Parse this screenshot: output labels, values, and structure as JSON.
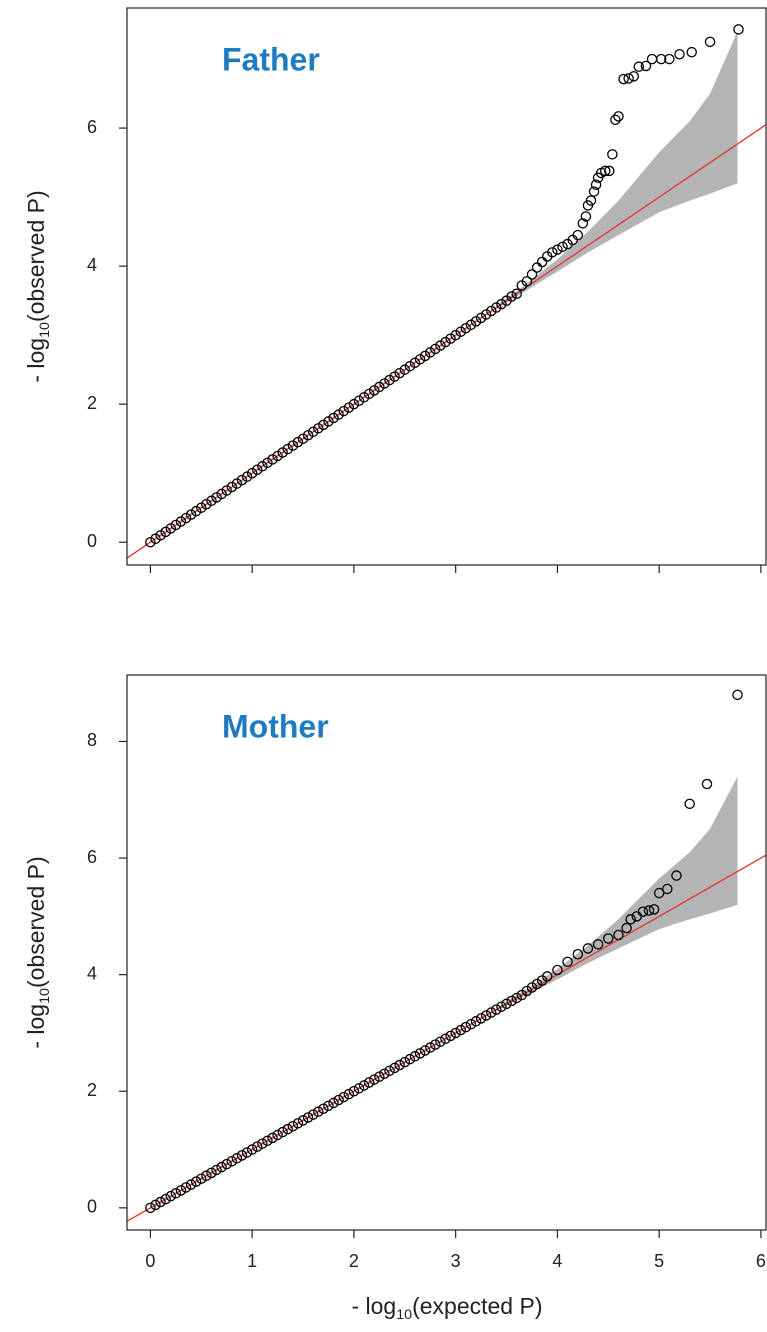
{
  "chart_data": [
    {
      "type": "scatter",
      "title": "Father",
      "title_color": "#1f7bc1",
      "ylabel": {
        "prefix": "- log",
        "sub": "10",
        "suffix": "(observed P)"
      },
      "xlim": [
        -0.23,
        6.05
      ],
      "ylim": [
        -0.33,
        7.74
      ],
      "xticks": [
        0,
        1,
        2,
        3,
        4,
        5,
        6
      ],
      "yticks": [
        0,
        2,
        4,
        6
      ],
      "show_xtick_labels": false,
      "reference": {
        "slope": 1,
        "intercept": 0,
        "color": "#e8312f"
      },
      "band": {
        "color": "#b4b4b4",
        "x": [
          3.4,
          3.7,
          4.0,
          4.3,
          4.6,
          5.0,
          5.3,
          5.5,
          5.77
        ],
        "upper": [
          3.42,
          3.75,
          4.1,
          4.5,
          4.95,
          5.65,
          6.1,
          6.5,
          7.4
        ],
        "lower": [
          3.38,
          3.65,
          3.92,
          4.2,
          4.45,
          4.78,
          4.95,
          5.05,
          5.2
        ]
      },
      "series": [
        {
          "color": "#000000",
          "x": [
            0,
            0.05,
            0.1,
            0.15,
            0.2,
            0.25,
            0.3,
            0.35,
            0.4,
            0.45,
            0.5,
            0.55,
            0.6,
            0.65,
            0.7,
            0.75,
            0.8,
            0.85,
            0.9,
            0.95,
            1,
            1.05,
            1.1,
            1.15,
            1.2,
            1.25,
            1.3,
            1.35,
            1.4,
            1.45,
            1.5,
            1.55,
            1.6,
            1.65,
            1.7,
            1.75,
            1.8,
            1.85,
            1.9,
            1.95,
            2,
            2.05,
            2.1,
            2.15,
            2.2,
            2.25,
            2.3,
            2.35,
            2.4,
            2.45,
            2.5,
            2.55,
            2.6,
            2.65,
            2.7,
            2.75,
            2.8,
            2.85,
            2.9,
            2.95,
            3,
            3.05,
            3.1,
            3.15,
            3.2,
            3.25,
            3.3,
            3.35,
            3.4,
            3.45,
            3.5,
            3.55,
            3.6,
            3.65,
            3.7,
            3.75,
            3.8,
            3.85,
            3.9,
            3.95,
            4.0,
            4.05,
            4.1,
            4.15,
            4.2,
            4.25,
            4.28,
            4.3,
            4.33,
            4.36,
            4.38,
            4.4,
            4.43,
            4.47,
            4.51,
            4.54,
            4.57,
            4.6,
            4.65,
            4.7,
            4.75,
            4.8,
            4.87,
            4.93,
            5.02,
            5.1,
            5.2,
            5.32,
            5.5,
            5.78
          ],
          "values": [
            0,
            0.05,
            0.1,
            0.15,
            0.2,
            0.25,
            0.3,
            0.35,
            0.4,
            0.45,
            0.5,
            0.55,
            0.6,
            0.65,
            0.7,
            0.75,
            0.8,
            0.85,
            0.9,
            0.95,
            1,
            1.05,
            1.1,
            1.15,
            1.2,
            1.25,
            1.3,
            1.35,
            1.4,
            1.45,
            1.5,
            1.55,
            1.6,
            1.65,
            1.7,
            1.75,
            1.8,
            1.85,
            1.9,
            1.95,
            2,
            2.05,
            2.1,
            2.15,
            2.2,
            2.25,
            2.3,
            2.35,
            2.4,
            2.45,
            2.5,
            2.55,
            2.6,
            2.65,
            2.7,
            2.75,
            2.8,
            2.85,
            2.9,
            2.95,
            3,
            3.05,
            3.1,
            3.15,
            3.2,
            3.25,
            3.3,
            3.35,
            3.4,
            3.45,
            3.5,
            3.56,
            3.6,
            3.72,
            3.78,
            3.88,
            3.98,
            4.06,
            4.14,
            4.2,
            4.24,
            4.28,
            4.32,
            4.38,
            4.45,
            4.62,
            4.72,
            4.88,
            4.95,
            5.08,
            5.18,
            5.28,
            5.35,
            5.38,
            5.38,
            5.62,
            6.12,
            6.17,
            6.71,
            6.72,
            6.75,
            6.89,
            6.9,
            7.0,
            7.0,
            7.0,
            7.07,
            7.1,
            7.25,
            7.43
          ]
        }
      ]
    },
    {
      "type": "scatter",
      "title": "Mother",
      "title_color": "#1f7bc1",
      "ylabel": {
        "prefix": "- log",
        "sub": "10",
        "suffix": "(observed P)"
      },
      "xlabel": {
        "prefix": "- log",
        "sub": "10",
        "suffix": "(expected P)"
      },
      "xlim": [
        -0.23,
        6.05
      ],
      "ylim": [
        -0.38,
        9.14
      ],
      "xticks": [
        0,
        1,
        2,
        3,
        4,
        5,
        6
      ],
      "yticks": [
        0,
        2,
        4,
        6,
        8
      ],
      "show_xtick_labels": true,
      "reference": {
        "slope": 1,
        "intercept": 0,
        "color": "#e8312f"
      },
      "band": {
        "color": "#b4b4b4",
        "x": [
          3.4,
          3.7,
          4.0,
          4.3,
          4.6,
          5.0,
          5.3,
          5.5,
          5.77
        ],
        "upper": [
          3.42,
          3.75,
          4.1,
          4.5,
          4.95,
          5.65,
          6.1,
          6.5,
          7.4
        ],
        "lower": [
          3.38,
          3.65,
          3.92,
          4.2,
          4.45,
          4.78,
          4.95,
          5.05,
          5.2
        ]
      },
      "series": [
        {
          "color": "#000000",
          "x": [
            0,
            0.05,
            0.1,
            0.15,
            0.2,
            0.25,
            0.3,
            0.35,
            0.4,
            0.45,
            0.5,
            0.55,
            0.6,
            0.65,
            0.7,
            0.75,
            0.8,
            0.85,
            0.9,
            0.95,
            1,
            1.05,
            1.1,
            1.15,
            1.2,
            1.25,
            1.3,
            1.35,
            1.4,
            1.45,
            1.5,
            1.55,
            1.6,
            1.65,
            1.7,
            1.75,
            1.8,
            1.85,
            1.9,
            1.95,
            2,
            2.05,
            2.1,
            2.15,
            2.2,
            2.25,
            2.3,
            2.35,
            2.4,
            2.45,
            2.5,
            2.55,
            2.6,
            2.65,
            2.7,
            2.75,
            2.8,
            2.85,
            2.9,
            2.95,
            3,
            3.05,
            3.1,
            3.15,
            3.2,
            3.25,
            3.3,
            3.35,
            3.4,
            3.45,
            3.5,
            3.55,
            3.6,
            3.65,
            3.7,
            3.75,
            3.8,
            3.85,
            3.9,
            4.0,
            4.1,
            4.2,
            4.3,
            4.4,
            4.5,
            4.6,
            4.68,
            4.72,
            4.78,
            4.84,
            4.9,
            4.95,
            5.0,
            5.08,
            5.17,
            5.3,
            5.47,
            5.77
          ],
          "values": [
            0,
            0.05,
            0.1,
            0.15,
            0.2,
            0.25,
            0.3,
            0.35,
            0.4,
            0.45,
            0.5,
            0.55,
            0.6,
            0.65,
            0.7,
            0.75,
            0.8,
            0.85,
            0.9,
            0.95,
            1,
            1.05,
            1.1,
            1.15,
            1.2,
            1.25,
            1.3,
            1.35,
            1.4,
            1.45,
            1.5,
            1.55,
            1.6,
            1.65,
            1.7,
            1.75,
            1.8,
            1.85,
            1.9,
            1.95,
            2,
            2.05,
            2.1,
            2.15,
            2.2,
            2.25,
            2.3,
            2.35,
            2.4,
            2.45,
            2.5,
            2.55,
            2.6,
            2.65,
            2.7,
            2.75,
            2.8,
            2.85,
            2.9,
            2.95,
            3,
            3.05,
            3.1,
            3.15,
            3.2,
            3.25,
            3.3,
            3.35,
            3.4,
            3.45,
            3.5,
            3.55,
            3.6,
            3.65,
            3.72,
            3.78,
            3.84,
            3.9,
            3.97,
            4.08,
            4.22,
            4.35,
            4.45,
            4.52,
            4.62,
            4.68,
            4.8,
            4.95,
            5.0,
            5.08,
            5.1,
            5.12,
            5.4,
            5.47,
            5.7,
            6.93,
            7.27,
            8.8
          ]
        }
      ]
    }
  ]
}
